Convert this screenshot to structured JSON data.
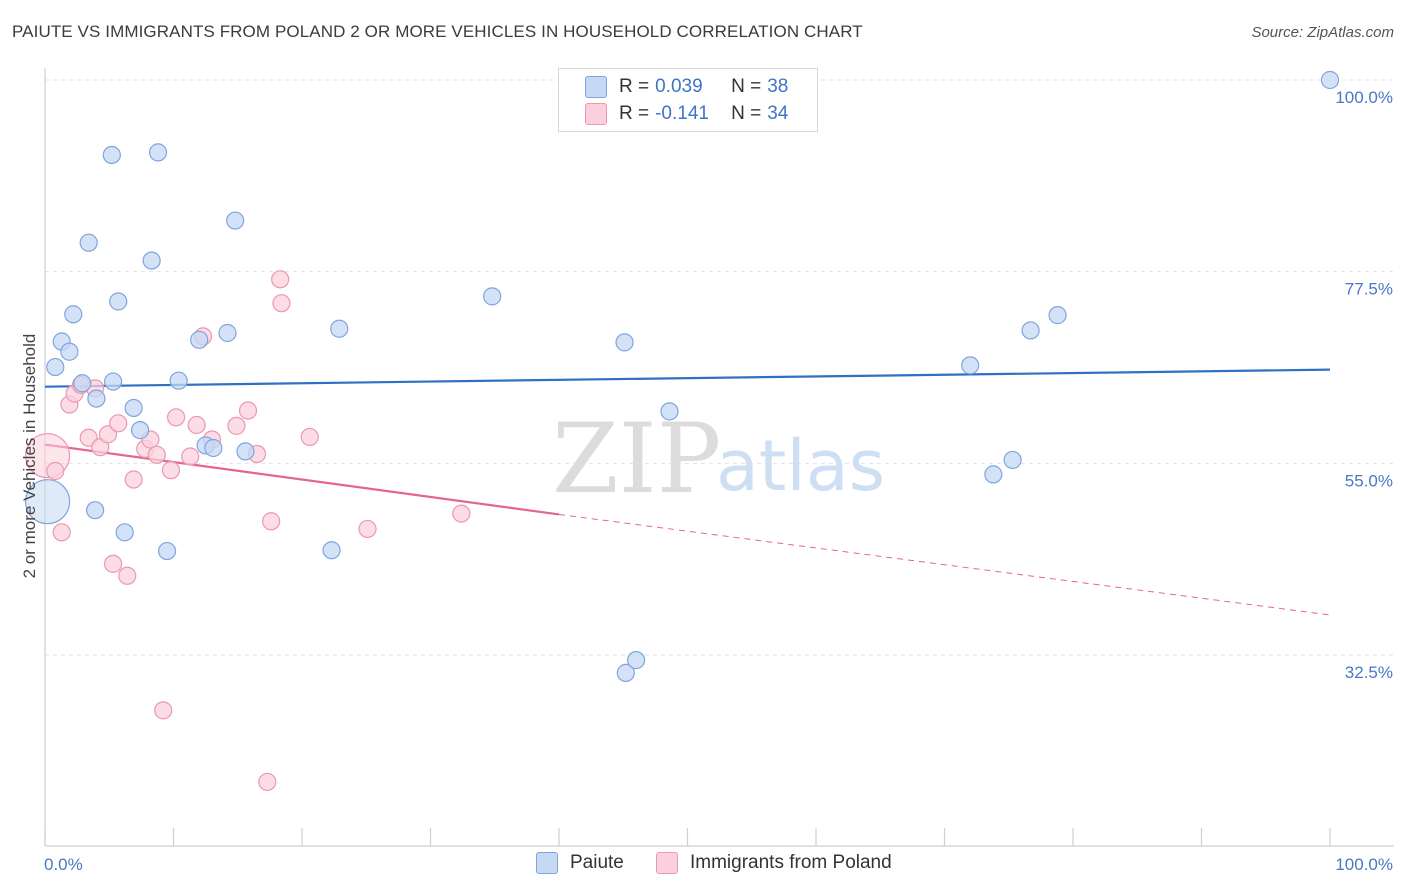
{
  "title": "PAIUTE VS IMMIGRANTS FROM POLAND 2 OR MORE VEHICLES IN HOUSEHOLD CORRELATION CHART",
  "source": "Source: ZipAtlas.com",
  "watermark": {
    "zip": "ZIP",
    "atlas": "atlas"
  },
  "legend": {
    "r_label": "R =",
    "n_label": "N =",
    "paiute": {
      "r": "0.039",
      "n": "38"
    },
    "poland": {
      "r": "-0.141",
      "n": "34"
    }
  },
  "colors": {
    "paiute_fill": "#c5d8f4",
    "paiute_stroke": "#7ea5dd",
    "paiute_line": "#2f6fc4",
    "poland_fill": "#fbd0dc",
    "poland_stroke": "#ec97b2",
    "poland_line": "#e4668f",
    "tick_text": "#4a78c4",
    "grid": "#e2e2e2"
  },
  "chart_data": {
    "type": "scatter",
    "title": "PAIUTE VS IMMIGRANTS FROM POLAND 2 OR MORE VEHICLES IN HOUSEHOLD CORRELATION CHART",
    "xlabel": "",
    "ylabel": "2 or more Vehicles in Household",
    "xlim": [
      0,
      100
    ],
    "ylim": [
      11,
      100
    ],
    "x_tick_labels": [
      "0.0%",
      "100.0%"
    ],
    "y_ticks": [
      {
        "value": 100,
        "label": "100.0%"
      },
      {
        "value": 77.5,
        "label": "77.5%"
      },
      {
        "value": 55,
        "label": "55.0%"
      },
      {
        "value": 32.5,
        "label": "32.5%"
      }
    ],
    "grid": true,
    "legend_position": "top-center",
    "series": [
      {
        "name": "Paiute",
        "points": [
          {
            "x": 0.2,
            "y": 50.5,
            "size": "large"
          },
          {
            "x": 0.8,
            "y": 66.3
          },
          {
            "x": 1.3,
            "y": 69.3
          },
          {
            "x": 1.9,
            "y": 68.1
          },
          {
            "x": 2.2,
            "y": 72.5
          },
          {
            "x": 2.9,
            "y": 64.4
          },
          {
            "x": 3.4,
            "y": 80.9
          },
          {
            "x": 3.9,
            "y": 49.5
          },
          {
            "x": 4.0,
            "y": 62.6
          },
          {
            "x": 5.2,
            "y": 91.2
          },
          {
            "x": 5.3,
            "y": 64.6
          },
          {
            "x": 5.7,
            "y": 74.0
          },
          {
            "x": 6.2,
            "y": 46.9
          },
          {
            "x": 6.9,
            "y": 61.5
          },
          {
            "x": 7.4,
            "y": 58.9
          },
          {
            "x": 8.3,
            "y": 78.8
          },
          {
            "x": 8.8,
            "y": 91.5
          },
          {
            "x": 9.5,
            "y": 44.7
          },
          {
            "x": 10.4,
            "y": 64.7
          },
          {
            "x": 12.0,
            "y": 69.5
          },
          {
            "x": 12.5,
            "y": 57.1
          },
          {
            "x": 13.1,
            "y": 56.8
          },
          {
            "x": 14.2,
            "y": 70.3
          },
          {
            "x": 14.8,
            "y": 83.5
          },
          {
            "x": 15.6,
            "y": 56.4
          },
          {
            "x": 22.3,
            "y": 44.8
          },
          {
            "x": 22.9,
            "y": 70.8
          },
          {
            "x": 34.8,
            "y": 74.6
          },
          {
            "x": 45.1,
            "y": 69.2
          },
          {
            "x": 45.2,
            "y": 30.4
          },
          {
            "x": 46.0,
            "y": 31.9
          },
          {
            "x": 48.6,
            "y": 61.1
          },
          {
            "x": 72.0,
            "y": 66.5
          },
          {
            "x": 73.8,
            "y": 53.7
          },
          {
            "x": 75.3,
            "y": 55.4
          },
          {
            "x": 76.7,
            "y": 70.6
          },
          {
            "x": 78.8,
            "y": 72.4
          },
          {
            "x": 100.0,
            "y": 100.0
          }
        ],
        "trend": {
          "x": [
            0,
            100
          ],
          "y": [
            64.0,
            66.0
          ],
          "style": "solid"
        }
      },
      {
        "name": "Immigrants from Poland",
        "points": [
          {
            "x": 0.2,
            "y": 55.9,
            "size": "large"
          },
          {
            "x": 0.8,
            "y": 54.1
          },
          {
            "x": 1.3,
            "y": 46.9
          },
          {
            "x": 1.9,
            "y": 61.9
          },
          {
            "x": 2.3,
            "y": 63.2
          },
          {
            "x": 2.8,
            "y": 64.2
          },
          {
            "x": 3.4,
            "y": 58.0
          },
          {
            "x": 3.9,
            "y": 63.8
          },
          {
            "x": 4.3,
            "y": 56.9
          },
          {
            "x": 4.9,
            "y": 58.4
          },
          {
            "x": 5.3,
            "y": 43.2
          },
          {
            "x": 5.7,
            "y": 59.7
          },
          {
            "x": 6.4,
            "y": 41.8
          },
          {
            "x": 6.9,
            "y": 53.1
          },
          {
            "x": 7.8,
            "y": 56.7
          },
          {
            "x": 8.2,
            "y": 57.8
          },
          {
            "x": 8.7,
            "y": 56.0
          },
          {
            "x": 9.2,
            "y": 26.0
          },
          {
            "x": 9.8,
            "y": 54.2
          },
          {
            "x": 10.2,
            "y": 60.4
          },
          {
            "x": 11.3,
            "y": 55.8
          },
          {
            "x": 11.8,
            "y": 59.5
          },
          {
            "x": 12.3,
            "y": 69.9
          },
          {
            "x": 13.0,
            "y": 57.8
          },
          {
            "x": 14.9,
            "y": 59.4
          },
          {
            "x": 15.8,
            "y": 61.2
          },
          {
            "x": 16.5,
            "y": 56.1
          },
          {
            "x": 17.3,
            "y": 17.6
          },
          {
            "x": 17.6,
            "y": 48.2
          },
          {
            "x": 18.3,
            "y": 76.6
          },
          {
            "x": 18.4,
            "y": 73.8
          },
          {
            "x": 20.6,
            "y": 58.1
          },
          {
            "x": 25.1,
            "y": 47.3
          },
          {
            "x": 32.4,
            "y": 49.1
          }
        ],
        "trend": {
          "x": [
            0,
            40,
            100
          ],
          "y": [
            57.2,
            49.0,
            37.2
          ],
          "style": "solid-then-dashed"
        }
      }
    ]
  },
  "bottom_legend": {
    "paiute": "Paiute",
    "poland": "Immigrants from Poland"
  }
}
